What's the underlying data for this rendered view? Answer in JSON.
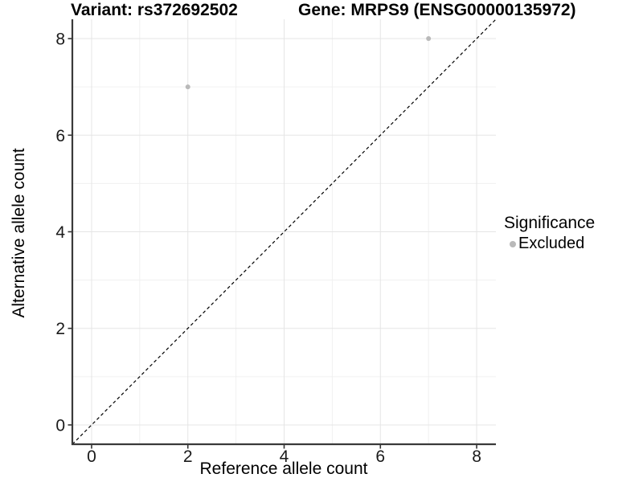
{
  "chart_data": {
    "type": "scatter",
    "title_left": "Variant: rs372692502",
    "title_right": "Gene: MRPS9 (ENSG00000135972)",
    "xlabel": "Reference allele count",
    "ylabel": "Alternative allele count",
    "xlim": [
      -0.4,
      8.4
    ],
    "ylim": [
      -0.4,
      8.4
    ],
    "x_ticks": [
      0,
      2,
      4,
      6,
      8
    ],
    "y_ticks": [
      0,
      2,
      4,
      6,
      8
    ],
    "x_minor_gridlines": [
      1,
      3,
      5,
      7
    ],
    "y_minor_gridlines": [
      1,
      3,
      5,
      7
    ],
    "grid": true,
    "legend": {
      "position": "right",
      "title": "Significance",
      "items": [
        {
          "label": "Excluded",
          "color": "#b9b9b9"
        }
      ]
    },
    "series": [
      {
        "name": "Excluded",
        "color": "#b9b9b9",
        "points": [
          {
            "x": 2,
            "y": 7
          },
          {
            "x": 7,
            "y": 8
          }
        ]
      }
    ],
    "identity_line": {
      "description": "y = x dashed reference line",
      "style": "dashed",
      "color": "#000000",
      "from": [
        -0.4,
        -0.4
      ],
      "to": [
        8.4,
        8.4
      ]
    }
  },
  "colors": {
    "grid_major": "#e5e5e5",
    "grid_minor": "#f0f0f0",
    "axis_line": "#3a3a3a",
    "tick_mark": "#333333",
    "tick_label": "#1a1a1a",
    "point": "#b9b9b9"
  }
}
